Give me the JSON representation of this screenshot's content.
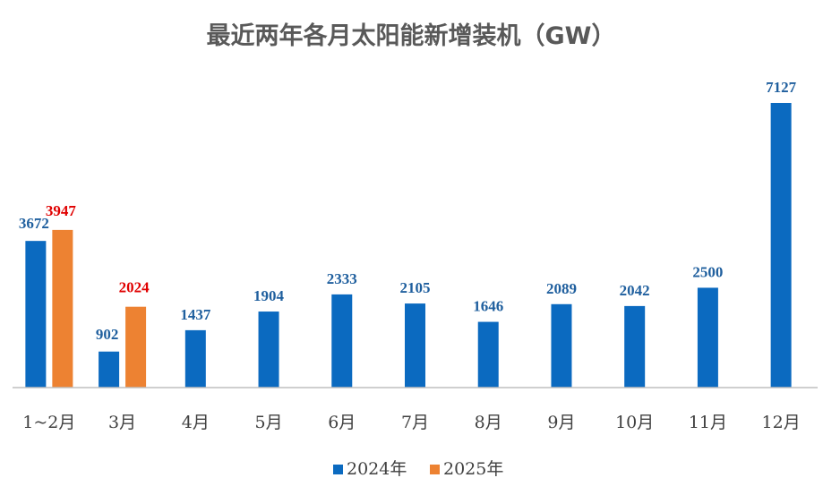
{
  "chart_data": {
    "type": "bar",
    "title": "最近两年各月太阳能新增装机（GW）",
    "xlabel": "",
    "ylabel": "",
    "categories": [
      "1~2月",
      "3月",
      "4月",
      "5月",
      "6月",
      "7月",
      "8月",
      "9月",
      "10月",
      "11月",
      "12月"
    ],
    "series": [
      {
        "name": "2024年",
        "color": "#0B6AC0",
        "label_color": "#1F5F9E",
        "values": [
          3672,
          902,
          1437,
          1904,
          2333,
          2105,
          1646,
          2089,
          2042,
          2500,
          7127
        ]
      },
      {
        "name": "2025年",
        "color": "#ED8232",
        "label_color": "#E00000",
        "values": [
          3947,
          2024,
          null,
          null,
          null,
          null,
          null,
          null,
          null,
          null,
          null
        ]
      }
    ],
    "ylim": [
      0,
      7127
    ],
    "grid": false,
    "legend_position": "bottom-center"
  }
}
